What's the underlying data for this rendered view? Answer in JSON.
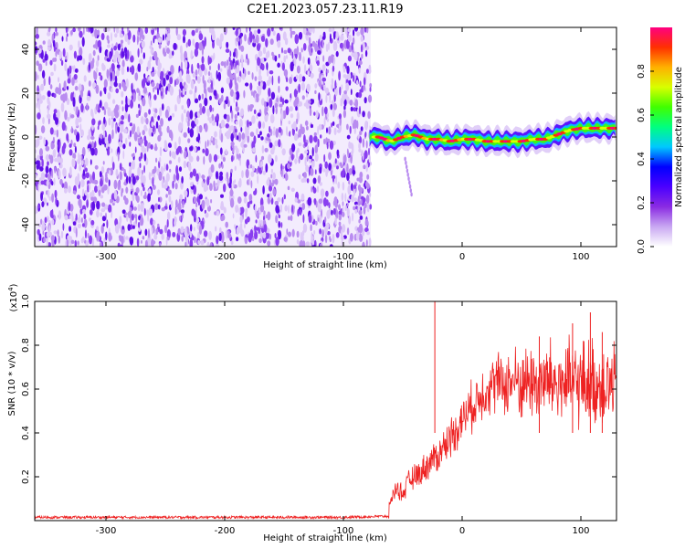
{
  "figure_title": "C2E1.2023.057.23.11.R19",
  "chart_data": [
    {
      "type": "heatmap",
      "title": "C2E1.2023.057.23.11.R19",
      "xlabel": "Height of straight line (km)",
      "ylabel": "Frequency (Hz)",
      "xlim": [
        -360,
        130
      ],
      "ylim": [
        -50,
        50
      ],
      "xticks": [
        -300,
        -200,
        -100,
        0,
        100
      ],
      "yticks": [
        -40,
        -20,
        0,
        20,
        40
      ],
      "noise_region_end_km": -77,
      "ridge": {
        "x": [
          -78,
          -70,
          -60,
          -50,
          -40,
          -30,
          -20,
          -10,
          0,
          10,
          20,
          30,
          40,
          50,
          60,
          70,
          80,
          90,
          100,
          110,
          120,
          130
        ],
        "y": [
          0,
          0,
          -2,
          0,
          1,
          -1,
          -1,
          -2,
          -1,
          -1,
          -2,
          -2,
          -2,
          -2,
          -1,
          -1,
          1,
          3,
          4,
          4,
          4,
          4
        ]
      },
      "colorbar": {
        "label": "Normalized spectral amplitude",
        "range": [
          0,
          1
        ],
        "ticks": [
          "0.0",
          "0.2",
          "0.4",
          "0.6",
          "0.8"
        ],
        "colors": [
          "#ffffff",
          "#c9a8f2",
          "#8a2be2",
          "#4b00ff",
          "#0000ff",
          "#00c8ff",
          "#00ff80",
          "#40ff00",
          "#d8ff00",
          "#ffb000",
          "#ff3000",
          "#ff0080"
        ]
      }
    },
    {
      "type": "line",
      "xlabel": "Height of straight line (km)",
      "ylabel": "SNR (10 * v/v)",
      "y_scale_label": "(x10",
      "y_scale_exp": "4",
      "y_scale_close": ")",
      "xlim": [
        -360,
        130
      ],
      "ylim": [
        0,
        1.0
      ],
      "xticks": [
        -300,
        -200,
        -100,
        0,
        100
      ],
      "yticks": [
        "0.2",
        "0.4",
        "0.6",
        "0.8",
        "1.0"
      ],
      "line_color": "#ee2222",
      "series": [
        {
          "name": "SNR",
          "x": [
            -360,
            -300,
            -200,
            -100,
            -62,
            -60,
            -55,
            -50,
            -45,
            -40,
            -35,
            -30,
            -25,
            -20,
            -15,
            -10,
            -5,
            0,
            5,
            10,
            15,
            20,
            25,
            30,
            35,
            40,
            45,
            50,
            55,
            60,
            65,
            70,
            75,
            80,
            85,
            90,
            95,
            100,
            105,
            110,
            115,
            120,
            125,
            130
          ],
          "y": [
            0.015,
            0.015,
            0.015,
            0.015,
            0.02,
            0.1,
            0.15,
            0.12,
            0.18,
            0.2,
            0.22,
            0.25,
            0.28,
            0.3,
            0.34,
            0.38,
            0.42,
            0.46,
            0.5,
            0.53,
            0.57,
            0.6,
            0.62,
            0.63,
            0.62,
            0.63,
            0.64,
            0.62,
            0.64,
            0.63,
            0.62,
            0.63,
            0.64,
            0.62,
            0.63,
            0.62,
            0.63,
            0.62,
            0.64,
            0.63,
            0.62,
            0.63,
            0.62,
            0.6
          ]
        }
      ],
      "spikes": [
        {
          "x": -23,
          "y": 1.0
        },
        {
          "x": 65,
          "y": 0.84
        },
        {
          "x": 93,
          "y": 0.9
        },
        {
          "x": 108,
          "y": 0.95
        },
        {
          "x": 118,
          "y": 0.86
        }
      ]
    }
  ]
}
